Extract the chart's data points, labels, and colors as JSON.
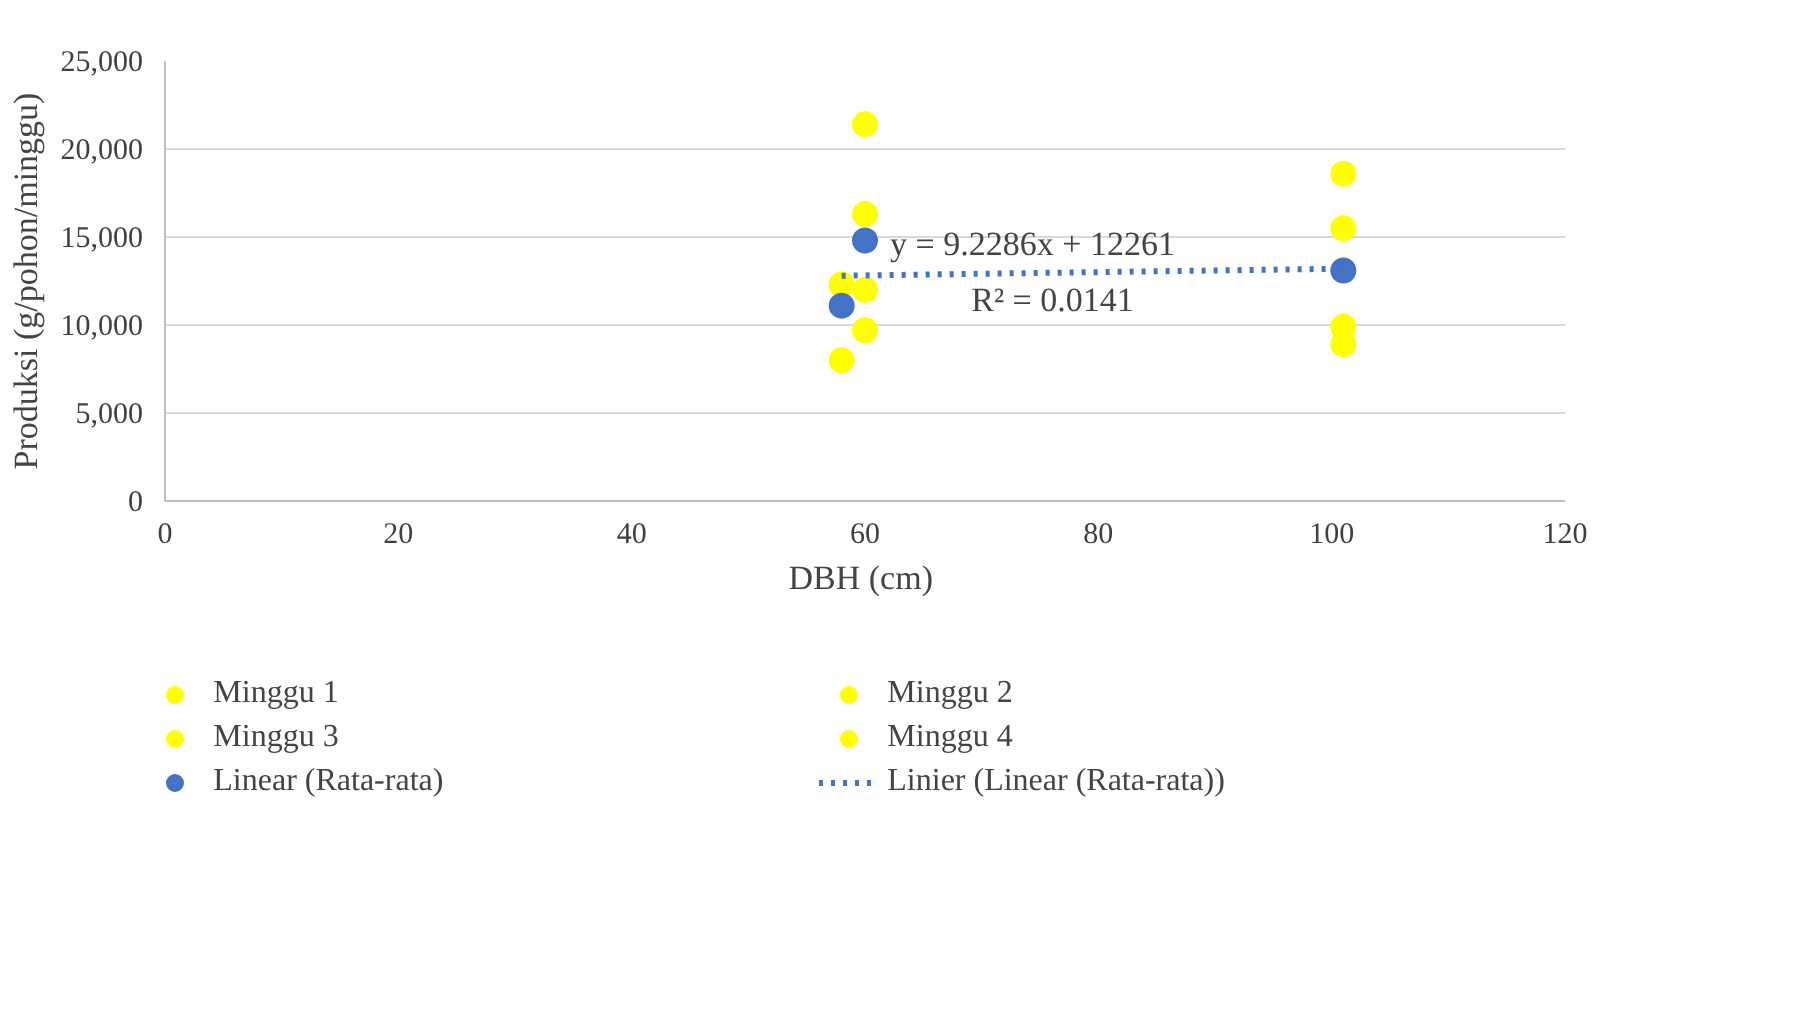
{
  "chart_data": {
    "type": "scatter",
    "xlabel": "DBH  (cm)",
    "ylabel": "Produksi (g/pohon/minggu)",
    "xlim": [
      0,
      120
    ],
    "xticks": [
      0,
      20,
      40,
      60,
      80,
      100,
      120
    ],
    "ylim": [
      0,
      25000
    ],
    "yticks": [
      {
        "value": 0,
        "label": "0"
      },
      {
        "value": 5000,
        "label": "5,000"
      },
      {
        "value": 10000,
        "label": "10,000"
      },
      {
        "value": 15000,
        "label": "15,000"
      },
      {
        "value": 20000,
        "label": "20,000"
      },
      {
        "value": 25000,
        "label": "25,000"
      }
    ],
    "grid": "y",
    "legend": "bottom",
    "marker": "circle",
    "series": [
      {
        "name": "Minggu 1",
        "color": "#ffff00",
        "x": [
          58,
          60,
          101
        ],
        "values": [
          8000,
          9700,
          8900
        ]
      },
      {
        "name": "Minggu 2",
        "color": "#ffff00",
        "x": [
          58,
          60,
          101
        ],
        "values": [
          12300,
          12000,
          9900
        ]
      },
      {
        "name": "Minggu 3",
        "color": "#ffff00",
        "x": [
          60,
          101
        ],
        "values": [
          16300,
          15500
        ]
      },
      {
        "name": "Minggu 4",
        "color": "#ffff00",
        "x": [
          60,
          101
        ],
        "values": [
          21400,
          18600
        ]
      },
      {
        "name": "Linear (Rata-rata)",
        "color": "#4472c4",
        "x": [
          58,
          60,
          101
        ],
        "values": [
          11100,
          14800,
          13100
        ]
      },
      {
        "name": "Linier (Linear (Rata-rata))",
        "type": "line",
        "marker": "none",
        "line_style": "dotted",
        "color": "#4472c4",
        "x": [
          58,
          101
        ],
        "values": [
          12800,
          13200
        ]
      }
    ],
    "annotations": [
      "y = 9.2286x + 12261",
      "R² = 0.0141"
    ]
  }
}
